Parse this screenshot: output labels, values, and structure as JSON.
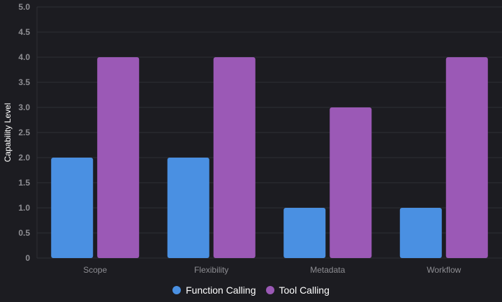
{
  "chart_data": {
    "type": "bar",
    "categories": [
      "Scope",
      "Flexibility",
      "Metadata",
      "Workflow"
    ],
    "series": [
      {
        "name": "Function Calling",
        "values": [
          2,
          2,
          1,
          1
        ],
        "color": "#4a90e2"
      },
      {
        "name": "Tool Calling",
        "values": [
          4,
          4,
          3,
          4
        ],
        "color": "#9b59b6"
      }
    ],
    "ylabel": "Capability Level",
    "xlabel": "",
    "ylim": [
      0,
      5
    ],
    "yticks": [
      "0",
      "0.5",
      "1.0",
      "1.5",
      "2.0",
      "2.5",
      "3.0",
      "3.5",
      "4.0",
      "4.5",
      "5.0"
    ],
    "grid": true,
    "legend_position": "bottom"
  },
  "colors": {
    "background": "#1c1c21",
    "grid": "#2e2f35",
    "tick_text": "#8e8e93",
    "axis_text": "#ffffff"
  }
}
